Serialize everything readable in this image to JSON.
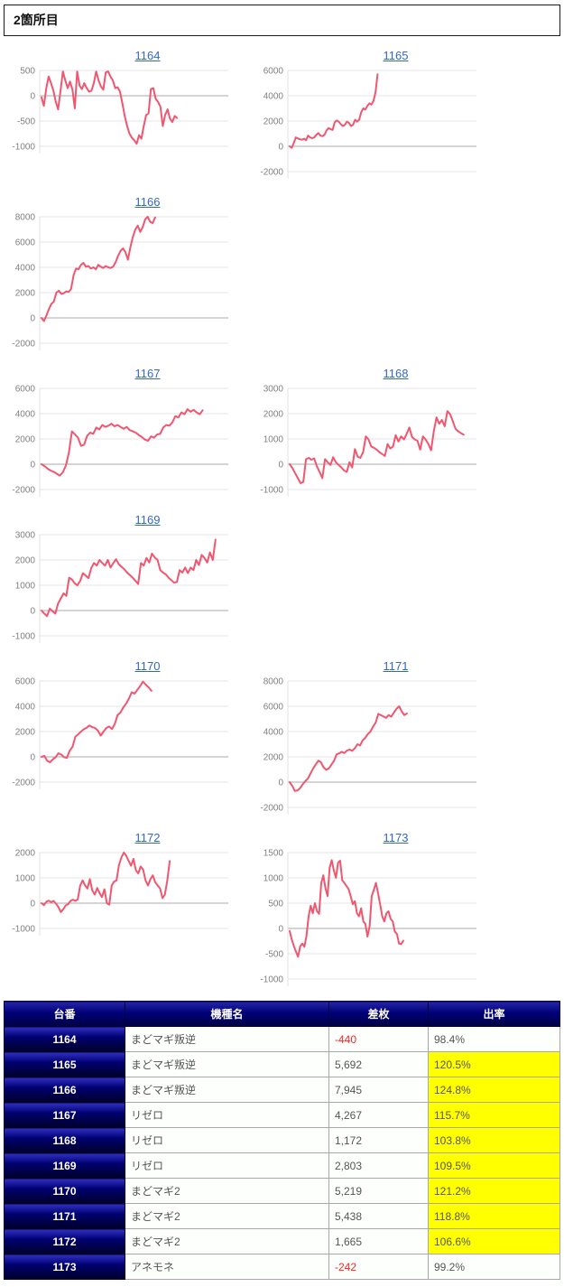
{
  "page_title": "2箇所目",
  "colors": {
    "line": "#f2566f",
    "link_blue": "#3366cc",
    "grid_line": "#e5e5e5",
    "zero_line": "#aaaaaa",
    "tick_text": "#808080",
    "header_navy": "#000080",
    "highlight_yellow": "#ffff00",
    "negative_red": "#ff2222"
  },
  "chart_data": [
    {
      "type": "line",
      "slot": 0,
      "title": "1164",
      "yticks": [
        500,
        0,
        -500,
        -1000
      ],
      "xfrac": 0.74,
      "values": [
        -30,
        -200,
        150,
        380,
        250,
        100,
        -120,
        -270,
        100,
        480,
        300,
        150,
        280,
        120,
        -250,
        480,
        200,
        130,
        250,
        150,
        80,
        100,
        250,
        480,
        300,
        180,
        120,
        460,
        480,
        380,
        300,
        150,
        170,
        80,
        -150,
        -400,
        -600,
        -750,
        -830,
        -880,
        -950,
        -780,
        -850,
        -600,
        -380,
        -350,
        130,
        150,
        -60,
        -120,
        -220,
        -600,
        -380,
        -270,
        -450,
        -520,
        -400,
        -440
      ]
    },
    {
      "type": "line",
      "slot": 1,
      "title": "1165",
      "yticks": [
        6000,
        4000,
        2000,
        0,
        -2000
      ],
      "xfrac": 0.48,
      "values": [
        0,
        -120,
        250,
        700,
        620,
        560,
        520,
        600,
        480,
        850,
        700,
        650,
        700,
        900,
        1050,
        850,
        800,
        900,
        1250,
        1450,
        1350,
        1300,
        1900,
        2050,
        1950,
        1750,
        1600,
        1700,
        1950,
        1850,
        1600,
        1700,
        2100,
        1950,
        2100,
        2700,
        3000,
        2900,
        3200,
        3400,
        3300,
        3600,
        4300,
        5692
      ]
    },
    {
      "type": "line",
      "slot": 2,
      "title": "1166",
      "yticks": [
        8000,
        6000,
        4000,
        2000,
        0,
        -2000
      ],
      "xfrac": 0.62,
      "values": [
        0,
        -250,
        200,
        700,
        1100,
        1300,
        2000,
        2150,
        1900,
        1950,
        2100,
        2050,
        2300,
        3400,
        3900,
        3850,
        4200,
        4350,
        4050,
        4100,
        3900,
        4000,
        3850,
        4200,
        4050,
        3950,
        4100,
        4000,
        3950,
        4050,
        4400,
        4900,
        5300,
        5500,
        5200,
        4600,
        5600,
        6400,
        7000,
        7300,
        6800,
        7200,
        7800,
        8000,
        7600,
        7500,
        7945
      ]
    },
    {
      "type": "line",
      "slot": 4,
      "title": "1167",
      "yticks": [
        6000,
        4000,
        2000,
        0,
        -2000
      ],
      "xfrac": 0.88,
      "values": [
        0,
        -150,
        -350,
        -500,
        -600,
        -750,
        -900,
        -650,
        -100,
        900,
        2600,
        2350,
        2100,
        1450,
        1550,
        2250,
        2500,
        2400,
        2900,
        2750,
        3100,
        2950,
        3050,
        3200,
        3000,
        3100,
        2950,
        2800,
        2950,
        2700,
        2600,
        2500,
        2300,
        2150,
        1950,
        1850,
        2200,
        2100,
        2350,
        2400,
        2900,
        3100,
        3050,
        3300,
        3800,
        3700,
        4100,
        3950,
        4350,
        4150,
        4300,
        4100,
        3950,
        4267
      ]
    },
    {
      "type": "line",
      "slot": 5,
      "title": "1168",
      "yticks": [
        3000,
        2000,
        1000,
        0,
        -1000
      ],
      "xfrac": 0.95,
      "values": [
        0,
        -150,
        -350,
        -550,
        -750,
        -700,
        200,
        250,
        180,
        230,
        -80,
        -300,
        -550,
        200,
        80,
        -30,
        280,
        80,
        -30,
        -130,
        -250,
        -300,
        80,
        -130,
        600,
        300,
        250,
        480,
        1100,
        980,
        700,
        650,
        580,
        480,
        400,
        330,
        800,
        620,
        700,
        1150,
        900,
        1100,
        980,
        1200,
        1450,
        1080,
        980,
        930,
        580,
        1100,
        980,
        800,
        550,
        1300,
        1850,
        1600,
        1750,
        1500,
        2100,
        1980,
        1700,
        1400,
        1300,
        1230,
        1172
      ]
    },
    {
      "type": "line",
      "slot": 6,
      "title": "1169",
      "yticks": [
        3000,
        2000,
        1000,
        0,
        -1000
      ],
      "xfrac": 0.95,
      "values": [
        0,
        -120,
        -220,
        80,
        -30,
        -120,
        280,
        480,
        680,
        580,
        1300,
        1230,
        1080,
        1000,
        1180,
        1480,
        1380,
        1280,
        1680,
        1880,
        1780,
        2000,
        1880,
        1780,
        2000,
        1700,
        1880,
        2030,
        1830,
        1730,
        1630,
        1500,
        1400,
        1300,
        1180,
        1050,
        1880,
        1780,
        2080,
        1900,
        2250,
        2100,
        2000,
        1600,
        1500,
        1430,
        1300,
        1200,
        1100,
        1130,
        1600,
        1500,
        1700,
        1480,
        1700,
        1600,
        2000,
        1800,
        2200,
        2080,
        1900,
        2300,
        2000,
        2803
      ]
    },
    {
      "type": "line",
      "slot": 8,
      "title": "1170",
      "yticks": [
        6000,
        4000,
        2000,
        0,
        -2000
      ],
      "xfrac": 0.6,
      "values": [
        0,
        80,
        -300,
        -430,
        -200,
        -30,
        280,
        180,
        -30,
        -80,
        480,
        800,
        1600,
        1780,
        2000,
        2180,
        2300,
        2480,
        2350,
        2280,
        2080,
        1680,
        2000,
        2280,
        2400,
        2200,
        2600,
        3300,
        3500,
        3900,
        4200,
        4600,
        5100,
        5000,
        5300,
        5600,
        5950,
        5700,
        5500,
        5219
      ]
    },
    {
      "type": "line",
      "slot": 9,
      "title": "1171",
      "yticks": [
        8000,
        6000,
        4000,
        2000,
        0,
        -2000
      ],
      "xfrac": 0.64,
      "values": [
        0,
        -300,
        -700,
        -650,
        -480,
        -180,
        80,
        280,
        680,
        1080,
        1400,
        1700,
        1580,
        1180,
        980,
        1080,
        1380,
        1680,
        2200,
        2280,
        2400,
        2300,
        2500,
        2580,
        2480,
        2680,
        3000,
        2900,
        3300,
        3500,
        3800,
        4000,
        4400,
        4700,
        5400,
        5300,
        5200,
        5080,
        5300,
        5180,
        5500,
        5800,
        6000,
        5600,
        5300,
        5438
      ]
    },
    {
      "type": "line",
      "slot": 10,
      "title": "1172",
      "yticks": [
        2000,
        1000,
        0,
        -1000
      ],
      "xfrac": 0.7,
      "values": [
        0,
        -80,
        60,
        100,
        40,
        90,
        -20,
        -160,
        -350,
        -240,
        -90,
        -40,
        90,
        140,
        90,
        150,
        700,
        900,
        700,
        580,
        950,
        500,
        340,
        600,
        400,
        240,
        550,
        0,
        -60,
        700,
        850,
        900,
        1500,
        1800,
        2000,
        1880,
        1680,
        1480,
        1750,
        1300,
        1180,
        1450,
        1330,
        900,
        700,
        950,
        1100,
        830,
        700,
        580,
        200,
        340,
        900,
        1665
      ]
    },
    {
      "type": "line",
      "slot": 11,
      "title": "1173",
      "yticks": [
        1500,
        1000,
        500,
        0,
        -500,
        -1000
      ],
      "xfrac": 0.62,
      "values": [
        -50,
        -220,
        -350,
        -460,
        -560,
        -350,
        -300,
        -360,
        -150,
        240,
        450,
        300,
        500,
        340,
        290,
        900,
        1050,
        800,
        640,
        1200,
        1350,
        1150,
        1000,
        1300,
        1340,
        950,
        900,
        840,
        780,
        640,
        480,
        540,
        300,
        240,
        400,
        140,
        90,
        -160,
        40,
        640,
        760,
        900,
        700,
        480,
        240,
        140,
        300,
        340,
        190,
        140,
        -60,
        -110,
        -300,
        -310,
        -242
      ]
    }
  ],
  "table": {
    "headers": [
      "台番",
      "機種名",
      "差枚",
      "出率"
    ],
    "rows": [
      {
        "no": "1164",
        "model": "まどマギ叛逆",
        "diff": "-440",
        "rate": "98.4%",
        "highlight": false
      },
      {
        "no": "1165",
        "model": "まどマギ叛逆",
        "diff": "5,692",
        "rate": "120.5%",
        "highlight": true
      },
      {
        "no": "1166",
        "model": "まどマギ叛逆",
        "diff": "7,945",
        "rate": "124.8%",
        "highlight": true
      },
      {
        "no": "1167",
        "model": "リゼロ",
        "diff": "4,267",
        "rate": "115.7%",
        "highlight": true
      },
      {
        "no": "1168",
        "model": "リゼロ",
        "diff": "1,172",
        "rate": "103.8%",
        "highlight": true
      },
      {
        "no": "1169",
        "model": "リゼロ",
        "diff": "2,803",
        "rate": "109.5%",
        "highlight": true
      },
      {
        "no": "1170",
        "model": "まどマギ2",
        "diff": "5,219",
        "rate": "121.2%",
        "highlight": true
      },
      {
        "no": "1171",
        "model": "まどマギ2",
        "diff": "5,438",
        "rate": "118.8%",
        "highlight": true
      },
      {
        "no": "1172",
        "model": "まどマギ2",
        "diff": "1,665",
        "rate": "106.6%",
        "highlight": true
      },
      {
        "no": "1173",
        "model": "アネモネ",
        "diff": "-242",
        "rate": "99.2%",
        "highlight": false
      }
    ]
  }
}
